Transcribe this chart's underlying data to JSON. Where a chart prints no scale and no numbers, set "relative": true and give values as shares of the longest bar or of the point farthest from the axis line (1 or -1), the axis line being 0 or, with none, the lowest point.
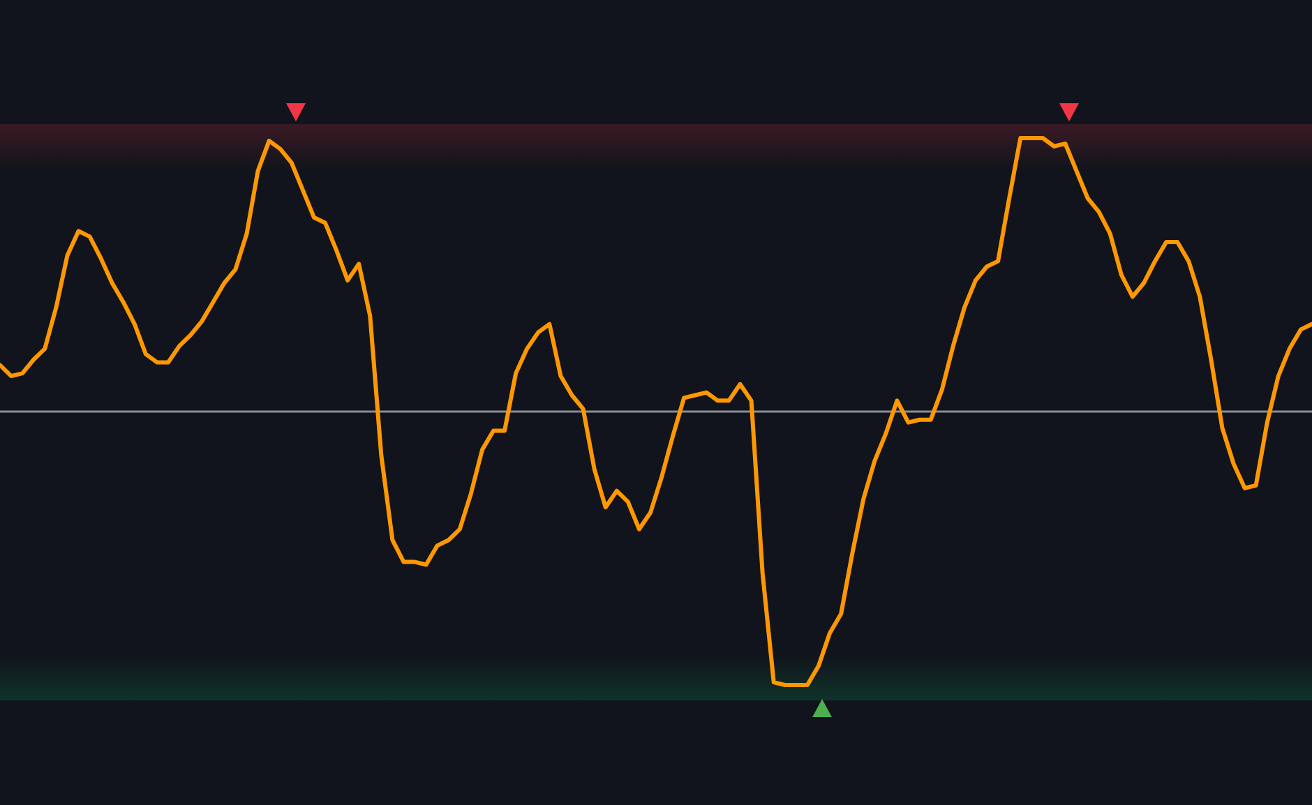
{
  "chart_data": {
    "type": "line",
    "relative": true,
    "categories": [
      null,
      null,
      null,
      null,
      null,
      null,
      null,
      null,
      null,
      null,
      null,
      null,
      null,
      null,
      null,
      null,
      null,
      null,
      null,
      null,
      null,
      null,
      null,
      null,
      null,
      null,
      null,
      null,
      null,
      null,
      null,
      null,
      null,
      null,
      null,
      null,
      null,
      null,
      null,
      null,
      null,
      null,
      null,
      null,
      null,
      null,
      null,
      null,
      null,
      null,
      null,
      null,
      null,
      null,
      null,
      null,
      null,
      null,
      null,
      null,
      null,
      null,
      null,
      null,
      null,
      null,
      null,
      null,
      null,
      null,
      null,
      null,
      null,
      null,
      null,
      null,
      null,
      null,
      null,
      null,
      null,
      null,
      null,
      null,
      null,
      null,
      null,
      null,
      null,
      null,
      null,
      null,
      null,
      null,
      null,
      null,
      null,
      null,
      null,
      null,
      null,
      null,
      null,
      null,
      null,
      null,
      null,
      null,
      null,
      null,
      null,
      null,
      null,
      null,
      null,
      null,
      null,
      null
    ],
    "series": [
      {
        "color": "#ff9800",
        "values": [
          0.17,
          0.13,
          0.14,
          0.19,
          0.23,
          0.38,
          0.57,
          0.66,
          0.64,
          0.56,
          0.47,
          0.4,
          0.32,
          0.21,
          0.18,
          0.18,
          0.24,
          0.28,
          0.33,
          0.4,
          0.47,
          0.52,
          0.65,
          0.88,
          0.99,
          0.96,
          0.91,
          0.81,
          0.71,
          0.69,
          0.59,
          0.48,
          0.54,
          0.35,
          -0.16,
          -0.47,
          -0.55,
          -0.55,
          -0.56,
          -0.49,
          -0.47,
          -0.43,
          -0.3,
          -0.14,
          -0.07,
          -0.07,
          0.14,
          0.23,
          0.29,
          0.32,
          0.13,
          0.06,
          0.01,
          -0.21,
          -0.35,
          -0.29,
          -0.33,
          -0.43,
          -0.37,
          -0.24,
          -0.09,
          0.05,
          0.06,
          0.07,
          0.04,
          0.04,
          0.1,
          0.04,
          -0.59,
          -0.99,
          -1,
          -1,
          -1,
          -0.93,
          -0.81,
          -0.74,
          -0.52,
          -0.32,
          -0.18,
          -0.08,
          0.04,
          -0.04,
          -0.03,
          -0.03,
          0.08,
          0.24,
          0.38,
          0.48,
          0.53,
          0.55,
          0.78,
          1,
          1,
          1,
          0.97,
          0.98,
          0.88,
          0.78,
          0.73,
          0.65,
          0.5,
          0.42,
          0.47,
          0.55,
          0.62,
          0.62,
          0.55,
          0.42,
          0.19,
          -0.06,
          -0.19,
          -0.28,
          -0.27,
          -0.04,
          0.13,
          0.23,
          0.3,
          0.32
        ]
      }
    ]
  }
}
